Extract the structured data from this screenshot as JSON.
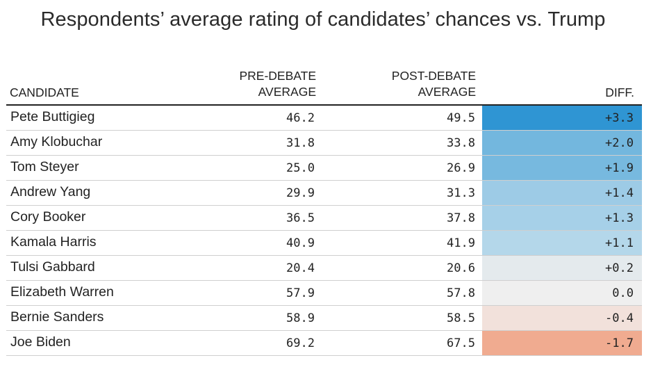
{
  "title": "Respondents’ average rating of candidates’ chances vs. Trump",
  "columns": {
    "candidate": "CANDIDATE",
    "pre_line1": "PRE-DEBATE",
    "pre_line2": "AVERAGE",
    "post_line1": "POST-DEBATE",
    "post_line2": "AVERAGE",
    "diff": "DIFF."
  },
  "chart_data": {
    "type": "table",
    "title": "Respondents’ average rating of candidates’ chances vs. Trump",
    "columns": [
      "CANDIDATE",
      "PRE-DEBATE AVERAGE",
      "POST-DEBATE AVERAGE",
      "DIFF."
    ],
    "rows": [
      {
        "candidate": "Pete Buttigieg",
        "pre": "46.2",
        "post": "49.5",
        "diff": "+3.3",
        "color": "#2f95d3"
      },
      {
        "candidate": "Amy Klobuchar",
        "pre": "31.8",
        "post": "33.8",
        "diff": "+2.0",
        "color": "#73b7de"
      },
      {
        "candidate": "Tom Steyer",
        "pre": "25.0",
        "post": "26.9",
        "diff": "+1.9",
        "color": "#77b9df"
      },
      {
        "candidate": "Andrew Yang",
        "pre": "29.9",
        "post": "31.3",
        "diff": "+1.4",
        "color": "#9dcbe6"
      },
      {
        "candidate": "Cory Booker",
        "pre": "36.5",
        "post": "37.8",
        "diff": "+1.3",
        "color": "#a6d0e8"
      },
      {
        "candidate": "Kamala Harris",
        "pre": "40.9",
        "post": "41.9",
        "diff": "+1.1",
        "color": "#b4d7ea"
      },
      {
        "candidate": "Tulsi Gabbard",
        "pre": "20.4",
        "post": "20.6",
        "diff": "+0.2",
        "color": "#e4eaed"
      },
      {
        "candidate": "Elizabeth Warren",
        "pre": "57.9",
        "post": "57.8",
        "diff": "0.0",
        "color": "#efefef"
      },
      {
        "candidate": "Bernie Sanders",
        "pre": "58.9",
        "post": "58.5",
        "diff": "-0.4",
        "color": "#f2e1db"
      },
      {
        "candidate": "Joe Biden",
        "pre": "69.2",
        "post": "67.5",
        "diff": "-1.7",
        "color": "#f0ab90"
      }
    ]
  }
}
